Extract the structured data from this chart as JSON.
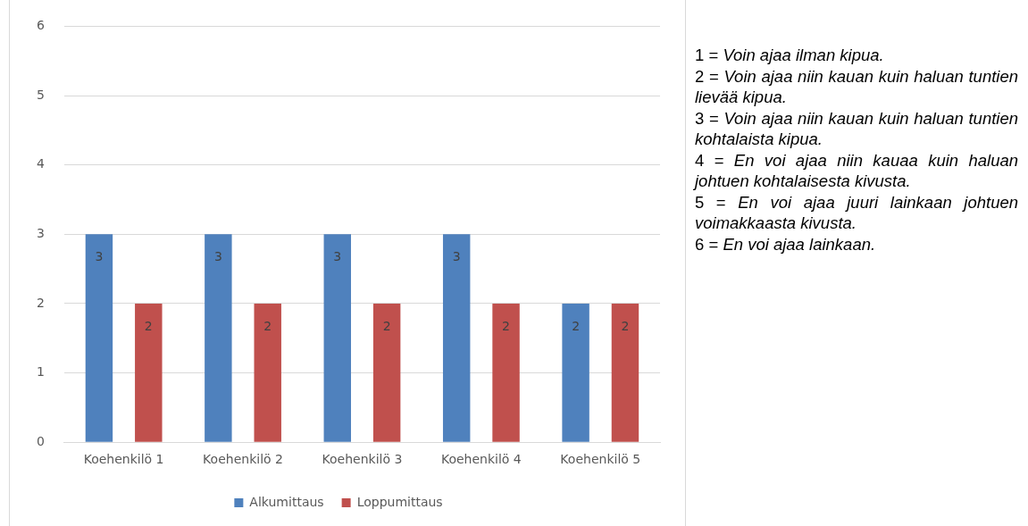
{
  "chart_data": {
    "type": "bar",
    "categories": [
      "Koehenkilö 1",
      "Koehenkilö 2",
      "Koehenkilö 3",
      "Koehenkilö 4",
      "Koehenkilö 5"
    ],
    "series": [
      {
        "name": "Alkumittaus",
        "color": "#4f81bd",
        "values": [
          3,
          3,
          3,
          3,
          2
        ]
      },
      {
        "name": "Loppumittaus",
        "color": "#c0504d",
        "values": [
          2,
          2,
          2,
          2,
          2
        ]
      }
    ],
    "ylim": [
      0,
      6
    ],
    "yticks": [
      0,
      1,
      2,
      3,
      4,
      5,
      6
    ],
    "grid": "y",
    "legend": "bottom",
    "data_labels": true,
    "annotations": [
      "1 = Voin ajaa ilman kipua.",
      "2 = Voin ajaa niin kauan kuin haluan tuntien lievää kipua.",
      "3 = Voin ajaa niin kauan kuin haluan tuntien kohtalaista kipua.",
      "4 = En voi ajaa niin kauaa kuin haluan johtuen kohtalaisesta kivusta.",
      "5 = En voi ajaa juuri lainkaan johtuen voimakkaasta kivusta.",
      "6 = En voi ajaa lainkaan."
    ]
  }
}
